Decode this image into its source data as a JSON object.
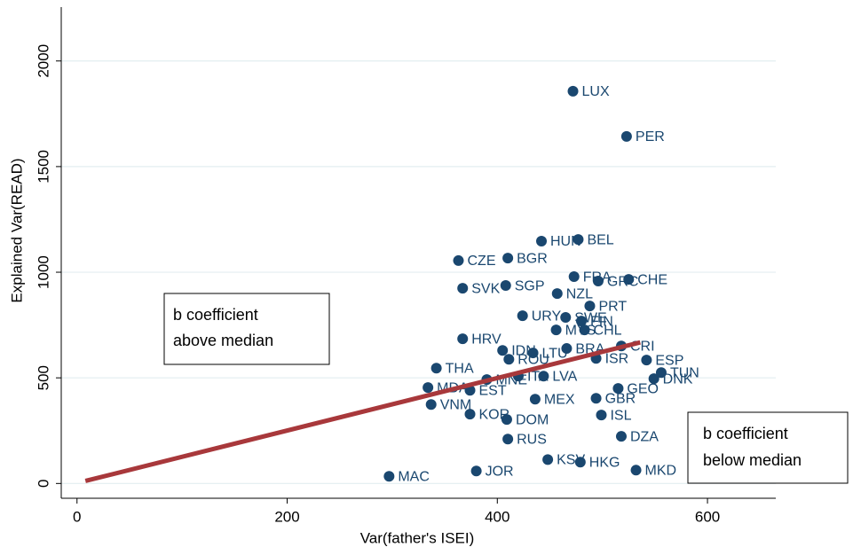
{
  "chart_data": {
    "type": "scatter",
    "x_label": "Var(father's ISEI)",
    "y_label": "Explained Var(READ)",
    "xlim": [
      -15,
      665
    ],
    "ylim": [
      -70,
      2255
    ],
    "xticks": [
      0,
      200,
      400,
      600
    ],
    "yticks": [
      0,
      500,
      1000,
      1500,
      2000
    ],
    "grid": true,
    "color": "#1a476f",
    "labels": [
      "LUX",
      "PER",
      "HUN",
      "BEL",
      "CZE",
      "BGR",
      "FRA",
      "GRC",
      "CHE",
      "SVK",
      "SGP",
      "NZL",
      "PRT",
      "URY",
      "SWE",
      "FIN",
      "MYS",
      "CHL",
      "CRI",
      "HRV",
      "IDN",
      "LTU",
      "BRA",
      "ROU",
      "ISR",
      "ESP",
      "TUN",
      "DNK",
      "THA",
      "MDA",
      "MNE",
      "EST",
      "LVA",
      "ITA",
      "MEX",
      "GEO",
      "GBR",
      "VNM",
      "KOR",
      "DOM",
      "ISL",
      "DZA",
      "RUS",
      "KSV",
      "HKG",
      "MKD",
      "JOR",
      "MAC"
    ],
    "x": [
      472,
      523,
      442,
      477,
      363,
      410,
      473,
      496,
      525,
      367,
      408,
      457,
      488,
      424,
      465,
      480,
      456,
      483,
      518,
      367,
      405,
      434,
      466,
      411,
      494,
      542,
      556,
      549,
      342,
      334,
      390,
      374,
      444,
      420,
      436,
      515,
      494,
      337,
      374,
      409,
      499,
      518,
      410,
      448,
      479,
      532,
      380,
      297
    ],
    "y": [
      1857,
      1643,
      1147,
      1155,
      1055,
      1067,
      979,
      958,
      966,
      924,
      937,
      899,
      840,
      794,
      786,
      769,
      727,
      727,
      651,
      685,
      630,
      618,
      639,
      588,
      592,
      584,
      525,
      496,
      546,
      454,
      492,
      441,
      508,
      508,
      399,
      450,
      403,
      374,
      328,
      303,
      324,
      223,
      210,
      113,
      101,
      63,
      59,
      34
    ],
    "fit": {
      "color": "#a8383b",
      "x": [
        8,
        536
      ],
      "y": [
        12,
        668
      ]
    },
    "annotations": [
      [
        "b coefficient",
        "above median"
      ],
      [
        "b coefficient",
        "below median"
      ]
    ]
  }
}
